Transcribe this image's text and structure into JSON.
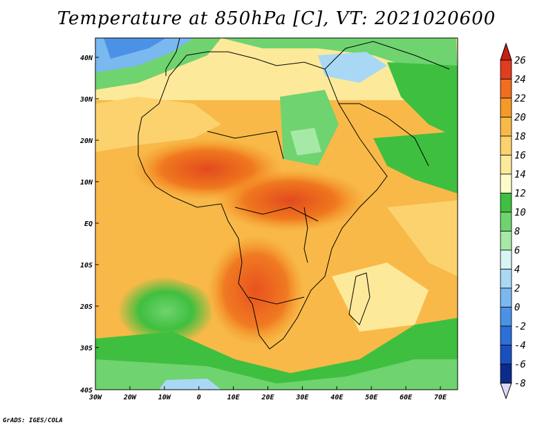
{
  "title": "Temperature at 850hPa [C], VT: 2021020600",
  "footer": "GrADS: IGES/COLA",
  "map": {
    "lon_range": [
      -30,
      75
    ],
    "lat_range": [
      -40,
      45
    ],
    "x_ticks": [
      "30W",
      "20W",
      "10W",
      "0",
      "10E",
      "20E",
      "30E",
      "40E",
      "50E",
      "60E",
      "70E"
    ],
    "y_ticks": [
      "40N",
      "30N",
      "20N",
      "10N",
      "EQ",
      "10S",
      "20S",
      "30S",
      "40S"
    ]
  },
  "colorbar": {
    "labels": [
      "26",
      "24",
      "22",
      "20",
      "18",
      "16",
      "14",
      "12",
      "10",
      "8",
      "6",
      "4",
      "2",
      "0",
      "-2",
      "-4",
      "-6",
      "-8"
    ],
    "colors": [
      "#e03c1e",
      "#f06e1e",
      "#f59a28",
      "#f8b948",
      "#fbd26e",
      "#fde99a",
      "#fdfcc8",
      "#3fbf3f",
      "#6fd36f",
      "#a6e8a6",
      "#d8f5f5",
      "#a9d8f5",
      "#7ab8f0",
      "#4b92e6",
      "#2c6fd8",
      "#1a4fbf",
      "#0c2c8c"
    ],
    "top_triangle_color": "#c81e14",
    "bottom_triangle_color": "#dcd8f8"
  }
}
